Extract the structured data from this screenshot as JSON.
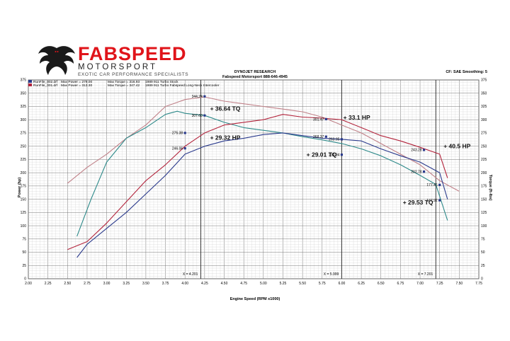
{
  "brand": {
    "name": "FABSPEED",
    "sub": "MOTORSPORT",
    "tagline": "EXOTIC CAR PERFORMANCE SPECIALISTS",
    "logo_icon": "eagle-icon",
    "color": "#e0141a"
  },
  "header": {
    "line1": "DYNOJET RESEARCH",
    "line2": "Fabspeed Motorsport 888-646-4945",
    "settings": "CF: SAE  Smoothing: 5"
  },
  "runs": [
    {
      "file": "RunFile_002.drf",
      "max_power": "Max Power = 279.00",
      "max_torque": "Max Torque = 316.93",
      "desc": "1989 911 Turbo Stock",
      "color": "#2a3a8c"
    },
    {
      "file": "RunFile_001.drf",
      "max_power": "Max Power = 313.30",
      "max_torque": "Max Torque = 347.42",
      "desc": "1989 911 Turbo Fabspeed Long-Neck Intercooler",
      "color": "#b3243c"
    }
  ],
  "chart_data": {
    "type": "line",
    "xlabel": "Engine Speed (RPM x1000)",
    "ylabel_left": "Power (hp)",
    "ylabel_right": "Torque (ft-lbs)",
    "xlim": [
      2.0,
      7.75
    ],
    "ylim": [
      0,
      375
    ],
    "x_ticks": [
      "2.00",
      "2.25",
      "2.50",
      "2.75",
      "3.00",
      "3.25",
      "3.50",
      "3.75",
      "4.00",
      "4.25",
      "4.50",
      "4.75",
      "5.00",
      "5.25",
      "5.50",
      "5.75",
      "6.00",
      "6.25",
      "6.50",
      "6.75",
      "7.00",
      "7.25",
      "7.50",
      "7.75"
    ],
    "y_ticks": [
      "0",
      "25",
      "50",
      "75",
      "100",
      "125",
      "150",
      "175",
      "200",
      "225",
      "250",
      "275",
      "300",
      "325",
      "350",
      "375"
    ],
    "grid": true,
    "series": [
      {
        "name": "",
        "color": "#c08088",
        "x": [
          2.5,
          2.75,
          3.0,
          3.25,
          3.5,
          3.75,
          4.0,
          4.25,
          4.5,
          4.75,
          5.0,
          5.25,
          5.5,
          5.75,
          6.0,
          6.25,
          6.5,
          6.75,
          7.0,
          7.25,
          7.5
        ],
        "values": [
          180,
          210,
          235,
          265,
          290,
          325,
          338,
          343,
          335,
          330,
          325,
          320,
          315,
          305,
          290,
          275,
          255,
          235,
          215,
          185,
          165
        ]
      },
      {
        "name": "",
        "color": "#2e8a8a",
        "x": [
          2.62,
          2.8,
          3.0,
          3.25,
          3.5,
          3.75,
          3.9,
          4.0,
          4.25,
          4.5,
          4.75,
          5.0,
          5.25,
          5.5,
          5.75,
          6.0,
          6.25,
          6.5,
          6.75,
          7.0,
          7.2,
          7.35
        ],
        "values": [
          80,
          150,
          220,
          265,
          285,
          310,
          316,
          312,
          308,
          295,
          285,
          280,
          275,
          268,
          262,
          255,
          245,
          232,
          215,
          195,
          178,
          110
        ]
      },
      {
        "name": "",
        "color": "#b3243c",
        "x": [
          2.5,
          2.75,
          3.0,
          3.25,
          3.5,
          3.75,
          4.0,
          4.25,
          4.5,
          4.75,
          5.0,
          5.25,
          5.5,
          5.75,
          6.0,
          6.25,
          6.5,
          6.75,
          7.0,
          7.25,
          7.35
        ],
        "values": [
          55,
          70,
          105,
          145,
          185,
          215,
          250,
          275,
          290,
          295,
          300,
          310,
          305,
          303,
          300,
          285,
          270,
          260,
          248,
          235,
          190
        ]
      },
      {
        "name": "",
        "color": "#2a3a8c",
        "x": [
          2.62,
          2.75,
          3.0,
          3.25,
          3.5,
          3.75,
          4.0,
          4.25,
          4.5,
          4.75,
          5.0,
          5.25,
          5.5,
          5.75,
          6.0,
          6.25,
          6.5,
          6.75,
          7.0,
          7.25,
          7.35
        ],
        "values": [
          40,
          65,
          95,
          125,
          160,
          195,
          235,
          250,
          260,
          265,
          272,
          275,
          270,
          265,
          263,
          260,
          245,
          232,
          220,
          200,
          150
        ]
      }
    ],
    "annotations": [
      {
        "text": "+ 36.64 TQ",
        "x": 4.32,
        "y": 317
      },
      {
        "text": "+ 29.32 HP",
        "x": 4.32,
        "y": 262
      },
      {
        "text": "+ 33.1 HP",
        "x": 6.02,
        "y": 300
      },
      {
        "text": "+ 29.01 TQ",
        "x": 5.55,
        "y": 230
      },
      {
        "text": "+ 40.5 HP",
        "x": 7.3,
        "y": 246
      },
      {
        "text": "+ 29.53 TQ",
        "x": 6.78,
        "y": 140
      }
    ],
    "point_labels": [
      {
        "text": "344.24",
        "x": 4.25,
        "y": 344
      },
      {
        "text": "307.60",
        "x": 4.25,
        "y": 308
      },
      {
        "text": "275.38",
        "x": 4.0,
        "y": 275
      },
      {
        "text": "246.06",
        "x": 4.0,
        "y": 246
      },
      {
        "text": "301.47",
        "x": 5.8,
        "y": 301
      },
      {
        "text": "268.37",
        "x": 5.8,
        "y": 268
      },
      {
        "text": "263.95",
        "x": 6.0,
        "y": 263
      },
      {
        "text": "234.94",
        "x": 6.0,
        "y": 234
      },
      {
        "text": "243.28",
        "x": 7.05,
        "y": 243
      },
      {
        "text": "202.78",
        "x": 7.05,
        "y": 202
      },
      {
        "text": "177.45",
        "x": 7.25,
        "y": 177
      },
      {
        "text": "147.92",
        "x": 7.25,
        "y": 148
      }
    ],
    "markers": [
      {
        "text": "X = 4.201",
        "x": 4.201
      },
      {
        "text": "X = 5.999",
        "x": 5.999
      },
      {
        "text": "X = 7.201",
        "x": 7.201
      }
    ]
  }
}
